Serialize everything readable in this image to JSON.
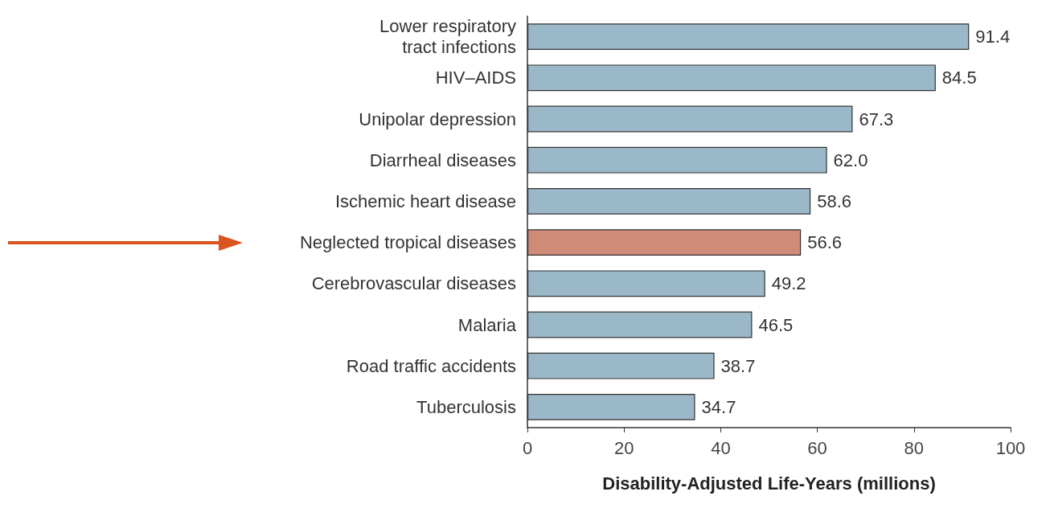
{
  "chart_data": {
    "type": "bar",
    "orientation": "horizontal",
    "xlabel": "Disability-Adjusted Life-Years (millions)",
    "categories": [
      "Lower respiratory\ntract infections",
      "HIV–AIDS",
      "Unipolar depression",
      "Diarrheal diseases",
      "Ischemic heart disease",
      "Neglected tropical diseases",
      "Cerebrovascular diseases",
      "Malaria",
      "Road traffic accidents",
      "Tuberculosis"
    ],
    "values": [
      91.4,
      84.5,
      67.3,
      62.0,
      58.6,
      56.6,
      49.2,
      46.5,
      38.7,
      34.7
    ],
    "value_labels": [
      "91.4",
      "84.5",
      "67.3",
      "62.0",
      "58.6",
      "56.6",
      "49.2",
      "46.5",
      "38.7",
      "34.7"
    ],
    "colors": [
      "#9bb8c9",
      "#9bb8c9",
      "#9bb8c9",
      "#9bb8c9",
      "#9bb8c9",
      "#d08a78",
      "#9bb8c9",
      "#9bb8c9",
      "#9bb8c9",
      "#9bb8c9"
    ],
    "xlim": [
      0,
      100
    ],
    "xticks": [
      0,
      20,
      40,
      60,
      80,
      100
    ],
    "grid": false
  }
}
